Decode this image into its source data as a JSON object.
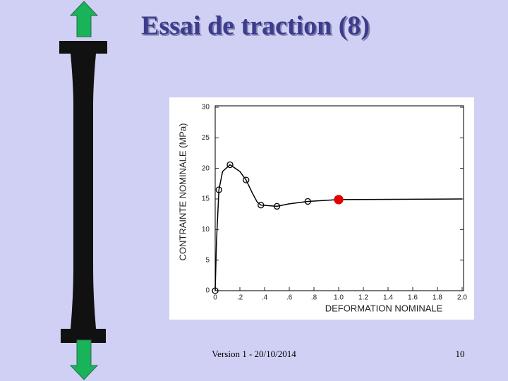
{
  "chart_data": {
    "type": "line",
    "title": "Essai de traction (8)",
    "x_label": "DEFORMATION NOMINALE",
    "y_label": "CONTRAINTE NOMINALE (MPa)",
    "xlim": [
      0,
      2
    ],
    "ylim": [
      0,
      30
    ],
    "xticks": [
      0,
      {
        "value": 0.2,
        "label": ".2"
      },
      {
        "value": 0.4,
        "label": ".4"
      },
      {
        "value": 0.6,
        "label": ".6"
      },
      {
        "value": 0.8,
        "label": ".8"
      },
      {
        "value": 1,
        "label": "1.0"
      },
      {
        "value": 1.2,
        "label": "1.2"
      },
      {
        "value": 1.4,
        "label": "1.4"
      },
      {
        "value": 1.6,
        "label": "1.6"
      },
      {
        "value": 1.8,
        "label": "1.8"
      },
      {
        "value": 2,
        "label": "2.0"
      }
    ],
    "yticks": [
      0,
      5,
      10,
      15,
      20,
      25,
      30
    ],
    "series": [
      {
        "color": "#000000",
        "marker": "none",
        "x": [
          0,
          0.01,
          0.03,
          0.06,
          0.12,
          0.2,
          0.25,
          0.3,
          0.34,
          0.37,
          0.5,
          0.6,
          0.75,
          1.0,
          2.0
        ],
        "values": [
          0,
          8,
          16.5,
          19.5,
          20.6,
          19.5,
          18.1,
          16,
          14.5,
          14.0,
          13.8,
          14.2,
          14.6,
          14.9,
          15
        ]
      },
      {
        "color": "#000000",
        "marker": "open",
        "x": [
          0,
          0.03,
          0.12,
          0.25,
          0.37,
          0.5,
          0.75
        ],
        "values": [
          0,
          16.5,
          20.6,
          18.1,
          14.0,
          13.8,
          14.6
        ]
      },
      {
        "color": "#e00000",
        "marker": "filled",
        "x": [
          1.0
        ],
        "values": [
          14.9
        ]
      }
    ]
  },
  "slide": {
    "footer": "Version 1 - 20/10/2014",
    "page_number": "10"
  }
}
